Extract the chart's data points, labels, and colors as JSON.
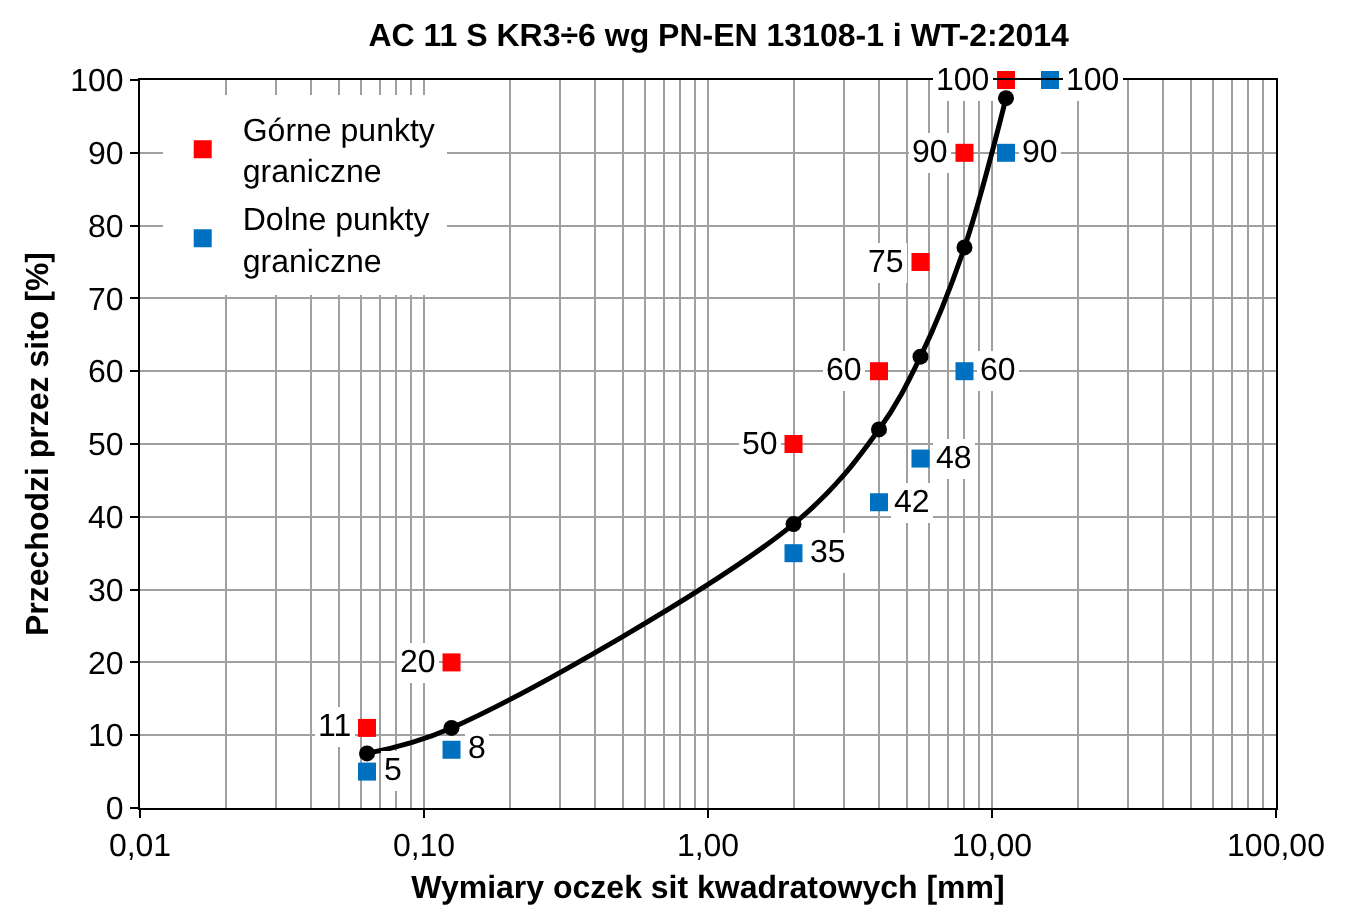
{
  "chart_data": {
    "type": "scatter",
    "title": "AC 11 S KR3÷6 wg PN-EN 13108-1 i WT-2:2014",
    "xlabel": "Wymiary oczek sit kwadratowych [mm]",
    "ylabel": "Przechodzi przez sito [%]",
    "log": "x",
    "grid": true,
    "legend": "top left",
    "xlim": [
      0.01,
      100
    ],
    "xticks": [
      {
        "value": 0.01,
        "label": "0,01"
      },
      {
        "value": 0.1,
        "label": "0,10"
      },
      {
        "value": 1,
        "label": "1,00"
      },
      {
        "value": 10,
        "label": "10,00"
      },
      {
        "value": 100,
        "label": "100,00"
      }
    ],
    "ylim": [
      0,
      100
    ],
    "yticks": [
      0,
      10,
      20,
      30,
      40,
      50,
      60,
      70,
      80,
      90,
      100
    ],
    "series": [
      {
        "name": "Górne punkty graniczne",
        "type": "scatter",
        "marker": "square",
        "color": "#ff0000",
        "x": [
          0.063,
          0.125,
          2,
          4,
          5.6,
          8,
          11.2
        ],
        "values": [
          11,
          20,
          50,
          60,
          75,
          90,
          100
        ],
        "value_labels": [
          "11",
          "20",
          "50",
          "60",
          "75",
          "90",
          "100"
        ]
      },
      {
        "name": "Dolne punkty graniczne",
        "type": "scatter",
        "marker": "square",
        "color": "#0070c0",
        "x": [
          0.063,
          0.125,
          2,
          4,
          5.6,
          8,
          11.2,
          16
        ],
        "values": [
          5,
          8,
          35,
          42,
          48,
          60,
          90,
          100
        ],
        "value_labels": [
          "5",
          "8",
          "35",
          "42",
          "48",
          "60",
          "90",
          "100"
        ]
      },
      {
        "type": "line",
        "marker": "circle",
        "line_style": "solid",
        "color": "#000000",
        "x": [
          0.063,
          0.125,
          2,
          4,
          5.6,
          8,
          11.2
        ],
        "values": [
          7.5,
          11,
          39,
          52,
          62,
          77,
          97.5
        ]
      }
    ]
  }
}
